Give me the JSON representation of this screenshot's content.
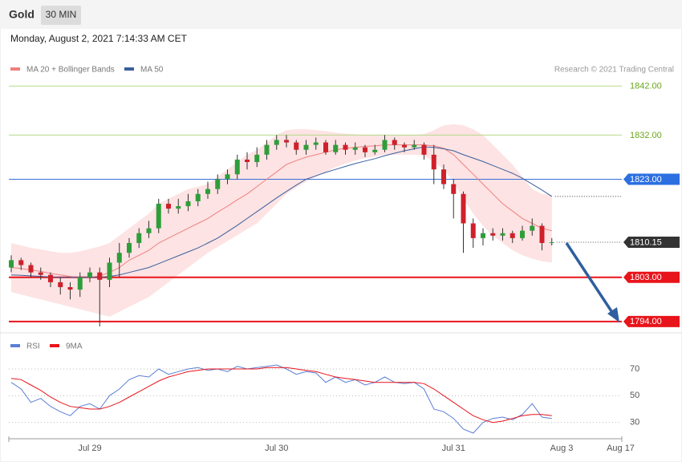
{
  "header": {
    "title": "Gold",
    "interval": "30 MIN",
    "timestamp": "Monday, August 2, 2021 7:14:33 AM CET"
  },
  "chart_data": [
    {
      "type": "candlestick",
      "credit": "Research © 2021 Trading Central",
      "up_color": "#2e9e3a",
      "down_color": "#d0202a",
      "ylim": [
        1792.5,
        1844
      ],
      "open": [
        1805,
        1806.5,
        1805.5,
        1804,
        1803.5,
        1802,
        1801,
        1800.5,
        1803,
        1804,
        1802.5,
        1806,
        1808,
        1810,
        1812,
        1813,
        1818,
        1817,
        1817.5,
        1818.5,
        1820,
        1821,
        1823,
        1824,
        1827,
        1826.5,
        1828,
        1830,
        1831,
        1830.5,
        1829,
        1830,
        1830.5,
        1828.5,
        1830,
        1829,
        1829.5,
        1828.5,
        1829,
        1831,
        1830,
        1829.5,
        1830,
        1828,
        1825,
        1822,
        1820,
        1814,
        1811,
        1812,
        1811.5,
        1812,
        1811,
        1812.5,
        1813.5,
        1810,
        null,
        null,
        null,
        null,
        null,
        null,
        null
      ],
      "high": [
        1807.5,
        1807,
        1806,
        1805,
        1804,
        1803,
        1802,
        1804,
        1805,
        1805,
        1807,
        1810,
        1811,
        1813,
        1814.5,
        1819,
        1819,
        1819,
        1820,
        1821,
        1822.5,
        1824,
        1825,
        1828,
        1828.5,
        1829.5,
        1831,
        1832,
        1832,
        1831,
        1831,
        1831.5,
        1831,
        1831,
        1830.5,
        1830.5,
        1830,
        1830,
        1832,
        1831.5,
        1830.5,
        1831,
        1830.5,
        1830,
        1826,
        1823,
        1820.5,
        1815,
        1813,
        1813,
        1813,
        1812.5,
        1813.5,
        1815,
        1814,
        1811,
        null,
        null,
        null,
        null,
        null,
        null,
        null
      ],
      "low": [
        1804,
        1804.5,
        1803,
        1802.5,
        1801,
        1799.5,
        1798.5,
        1799,
        1802,
        1793,
        1801,
        1803,
        1807,
        1809,
        1811,
        1812,
        1816,
        1816,
        1816.5,
        1817.5,
        1819,
        1820,
        1822,
        1823,
        1825,
        1825.5,
        1827,
        1829,
        1829.5,
        1828,
        1828,
        1829,
        1828,
        1828,
        1828,
        1828,
        1827.5,
        1828,
        1828.5,
        1829,
        1828.5,
        1829,
        1827,
        1822,
        1821,
        1815,
        1808,
        1809,
        1809.5,
        1810.5,
        1810.5,
        1810,
        1810.5,
        1811.5,
        1808.5,
        1809.5,
        null,
        null,
        null,
        null,
        null,
        null,
        null
      ],
      "close": [
        1806.5,
        1805.5,
        1804,
        1803.5,
        1802,
        1801,
        1800.5,
        1803,
        1804,
        1802.5,
        1806,
        1808,
        1810,
        1812,
        1813,
        1818,
        1817,
        1817.5,
        1818.5,
        1820,
        1821,
        1823,
        1824,
        1827,
        1826.5,
        1828,
        1830,
        1831,
        1830.5,
        1829,
        1830,
        1830.5,
        1828.5,
        1830,
        1829,
        1829.5,
        1828.5,
        1829,
        1831,
        1830,
        1829.5,
        1830,
        1828,
        1825,
        1822,
        1820,
        1814,
        1811,
        1812,
        1811.5,
        1812,
        1811,
        1812.5,
        1813.5,
        1810,
        1810.15,
        null,
        null,
        null,
        null,
        null,
        null,
        null
      ],
      "series": [
        {
          "name": "MA 20 + Bollinger Bands",
          "color": "#f08080",
          "band_color": "#fde0e0",
          "values": [
            1805,
            1804.8,
            1804.5,
            1804.2,
            1803.8,
            1803.5,
            1803.2,
            1803,
            1803,
            1803.3,
            1804,
            1805,
            1806.5,
            1807.5,
            1808.5,
            1810,
            1811,
            1812,
            1813,
            1814,
            1815,
            1816.3,
            1817.5,
            1818.8,
            1820,
            1821.5,
            1823,
            1824.5,
            1826,
            1826.8,
            1827.5,
            1828,
            1828.5,
            1829,
            1829.3,
            1829.5,
            1829.7,
            1829.8,
            1830,
            1830,
            1830,
            1830,
            1830,
            1829.8,
            1829.3,
            1828,
            1826,
            1824,
            1822,
            1820,
            1818,
            1816.5,
            1815,
            1814,
            1813,
            1812.5,
            null,
            null,
            null,
            null,
            null,
            null,
            null
          ],
          "band_upper": [
            1810,
            1809.5,
            1809,
            1808.7,
            1808.3,
            1808,
            1808,
            1808.3,
            1808.8,
            1809.3,
            1810,
            1811.5,
            1813,
            1814.5,
            1816,
            1818,
            1819,
            1820,
            1821,
            1821.5,
            1822,
            1823.5,
            1825,
            1826.5,
            1828,
            1829,
            1830.5,
            1832,
            1833,
            1833.2,
            1833.2,
            1833,
            1832.8,
            1832.5,
            1832.3,
            1832.2,
            1832,
            1832,
            1832,
            1832,
            1832,
            1832,
            1832.2,
            1833,
            1834,
            1834.2,
            1834,
            1833.2,
            1832,
            1830,
            1828,
            1826,
            1823.5,
            1821,
            1820,
            1819.8,
            null,
            null,
            null,
            null,
            null,
            null,
            null
          ],
          "band_lower": [
            1800,
            1799.5,
            1799,
            1798.5,
            1798,
            1797.5,
            1797,
            1796.5,
            1796,
            1795.5,
            1795,
            1796,
            1797,
            1798,
            1799,
            1800.5,
            1802,
            1803.5,
            1805,
            1806.5,
            1808,
            1809.2,
            1810.4,
            1811.6,
            1812.8,
            1814,
            1816,
            1818,
            1820,
            1821.3,
            1822.5,
            1823.5,
            1824.5,
            1825.5,
            1826.2,
            1826.8,
            1827.3,
            1827.6,
            1828,
            1828,
            1828,
            1828,
            1827.8,
            1826.5,
            1825,
            1822.5,
            1819,
            1816,
            1813.5,
            1811.5,
            1810,
            1808.5,
            1807.5,
            1806.8,
            1806.3,
            1806,
            null,
            null,
            null,
            null,
            null,
            null,
            null
          ]
        },
        {
          "name": "MA 50",
          "color": "#3a5f9e",
          "values": [
            1803.5,
            1803.4,
            1803.3,
            1803.2,
            1803.1,
            1803,
            1803,
            1803,
            1803,
            1803,
            1803.2,
            1803.5,
            1804,
            1804.5,
            1805,
            1805.8,
            1806.6,
            1807.4,
            1808.2,
            1809,
            1810,
            1811,
            1812.3,
            1813.6,
            1815,
            1816.4,
            1817.8,
            1819.2,
            1820.5,
            1821.8,
            1823,
            1823.7,
            1824.4,
            1825,
            1825.6,
            1826.2,
            1826.7,
            1827.2,
            1827.8,
            1828.3,
            1828.8,
            1829.2,
            1829.6,
            1829.5,
            1829.2,
            1828.8,
            1828,
            1827.3,
            1826.6,
            1825.8,
            1825,
            1824.2,
            1823.2,
            1822,
            1820.8,
            1819.5,
            null,
            null,
            null,
            null,
            null,
            null,
            null
          ]
        }
      ],
      "levels": [
        {
          "value": 1842,
          "label": "1842.00",
          "color": "#6aa51c",
          "line_color": "#b5d98a",
          "style": "thin",
          "box": false
        },
        {
          "value": 1832,
          "label": "1832.00",
          "color": "#6aa51c",
          "line_color": "#b5d98a",
          "style": "thin",
          "box": false
        },
        {
          "value": 1823,
          "label": "1823.00",
          "color": "#2b6fe0",
          "line_color": "#3a6fd8",
          "style": "thin",
          "box": true
        },
        {
          "value": 1810.15,
          "label": "1810.15",
          "color": "#333333",
          "line_color": "#555555",
          "style": "dotted",
          "box": true
        },
        {
          "value": 1803,
          "label": "1803.00",
          "color": "#e8141b",
          "line_color": "#e8141b",
          "style": "thick",
          "box": true
        },
        {
          "value": 1794,
          "label": "1794.00",
          "color": "#e8141b",
          "line_color": "#e8141b",
          "style": "thick",
          "box": true
        }
      ]
    },
    {
      "type": "line",
      "categories": [
        null,
        null,
        null,
        null,
        null,
        null,
        null,
        null,
        "Jul 29",
        null,
        null,
        null,
        null,
        null,
        null,
        null,
        null,
        null,
        null,
        null,
        null,
        null,
        null,
        null,
        null,
        null,
        null,
        "Jul 30",
        null,
        null,
        null,
        null,
        null,
        null,
        null,
        null,
        null,
        null,
        null,
        null,
        null,
        null,
        null,
        null,
        null,
        "Jul 31",
        null,
        null,
        null,
        null,
        null,
        null,
        null,
        null,
        null,
        null,
        "Aug 3",
        null,
        null,
        null,
        null,
        null,
        "Aug 17"
      ],
      "ylim": [
        19,
        79
      ],
      "yticks": [
        30,
        50,
        70
      ],
      "grid": true,
      "series": [
        {
          "name": "RSI",
          "color": "#5b7fd6",
          "values": [
            60,
            55,
            45,
            48,
            42,
            38,
            35,
            42,
            44,
            40,
            50,
            55,
            62,
            65,
            64,
            70,
            66,
            68,
            70,
            71,
            69,
            70,
            68,
            72,
            70,
            71,
            72,
            73,
            70,
            66,
            68,
            67,
            60,
            64,
            60,
            62,
            58,
            60,
            64,
            60,
            59,
            60,
            55,
            40,
            38,
            33,
            25,
            22,
            30,
            33,
            34,
            32,
            36,
            44,
            34,
            33,
            null,
            null,
            null,
            null,
            null,
            null,
            null
          ]
        },
        {
          "name": "9MA",
          "color": "#e8141b",
          "values": [
            63,
            62,
            58,
            54,
            49,
            45,
            42,
            41,
            40,
            40,
            42,
            45,
            49,
            53,
            57,
            61,
            64,
            66,
            68,
            69,
            70,
            70,
            70,
            70,
            70,
            70,
            71,
            71,
            71,
            70,
            69,
            68,
            66,
            64,
            63,
            62,
            61,
            60,
            60,
            60,
            60,
            60,
            59,
            55,
            50,
            45,
            40,
            35,
            32,
            30,
            31,
            33,
            35,
            36,
            36,
            35,
            null,
            null,
            null,
            null,
            null,
            null,
            null
          ]
        }
      ]
    }
  ]
}
